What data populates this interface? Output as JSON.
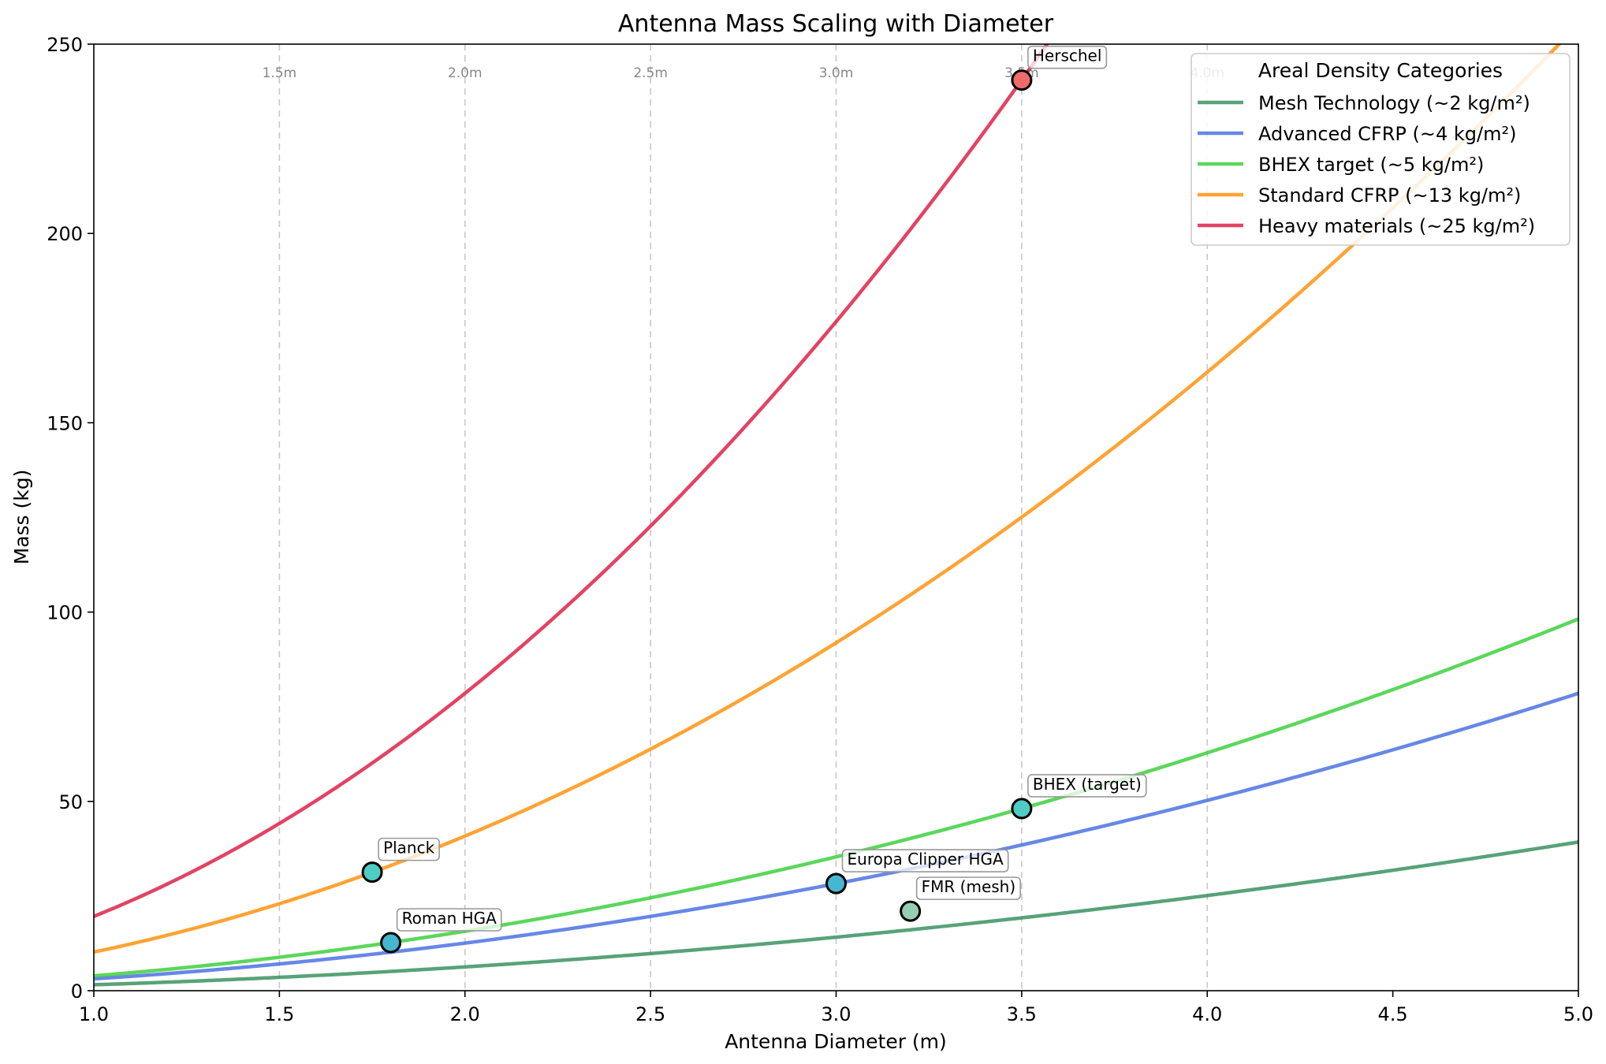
{
  "chart_data": {
    "type": "line",
    "title": "Antenna Mass Scaling with Diameter",
    "xlabel": "Antenna Diameter (m)",
    "ylabel": "Mass (kg)",
    "xlim": [
      1.0,
      5.0
    ],
    "ylim": [
      0,
      250
    ],
    "xticks": [
      1.0,
      1.5,
      2.0,
      2.5,
      3.0,
      3.5,
      4.0,
      4.5,
      5.0
    ],
    "xtick_labels": [
      "1.0",
      "1.5",
      "2.0",
      "2.5",
      "3.0",
      "3.5",
      "4.0",
      "4.5",
      "5.0"
    ],
    "yticks": [
      0,
      50,
      100,
      150,
      200,
      250
    ],
    "ytick_labels": [
      "0",
      "50",
      "100",
      "150",
      "200",
      "250"
    ],
    "grid": false,
    "reference_lines": [
      {
        "x": 1.5,
        "label": "1.5m"
      },
      {
        "x": 2.0,
        "label": "2.0m"
      },
      {
        "x": 2.5,
        "label": "2.5m"
      },
      {
        "x": 3.0,
        "label": "3.0m"
      },
      {
        "x": 3.5,
        "label": "3.5m"
      },
      {
        "x": 4.0,
        "label": "4.0m"
      }
    ],
    "legend": {
      "title": "Areal Density Categories",
      "placement": "top-right"
    },
    "series": [
      {
        "name": "Mesh Technology (~2 kg/m²)",
        "areal_density": 2,
        "color": "#2e8b57",
        "formula": "density * pi * (D/2)^2"
      },
      {
        "name": "Advanced CFRP (~4 kg/m²)",
        "areal_density": 4,
        "color": "#4169e1",
        "formula": "density * pi * (D/2)^2"
      },
      {
        "name": "BHEX target (~5 kg/m²)",
        "areal_density": 5,
        "color": "#32cd32",
        "formula": "density * pi * (D/2)^2"
      },
      {
        "name": "Standard CFRP (~13 kg/m²)",
        "areal_density": 13,
        "color": "#ff8c00",
        "formula": "density * pi * (D/2)^2"
      },
      {
        "name": "Heavy materials (~25 kg/m²)",
        "areal_density": 25,
        "color": "#dc143c",
        "formula": "density * pi * (D/2)^2"
      }
    ],
    "points": [
      {
        "label": "Herschel",
        "x": 3.5,
        "y": 240.5,
        "color": "#f06b6b"
      },
      {
        "label": "Planck",
        "x": 1.75,
        "y": 31.3,
        "color": "#4ecdc4"
      },
      {
        "label": "Roman HGA",
        "x": 1.8,
        "y": 12.7,
        "color": "#45b7d1"
      },
      {
        "label": "Europa Clipper HGA",
        "x": 3.0,
        "y": 28.3,
        "color": "#45b7d1"
      },
      {
        "label": "FMR (mesh)",
        "x": 3.2,
        "y": 21.0,
        "color": "#96ceb4"
      },
      {
        "label": "BHEX (target)",
        "x": 3.5,
        "y": 48.1,
        "color": "#4ecdc4"
      }
    ]
  }
}
